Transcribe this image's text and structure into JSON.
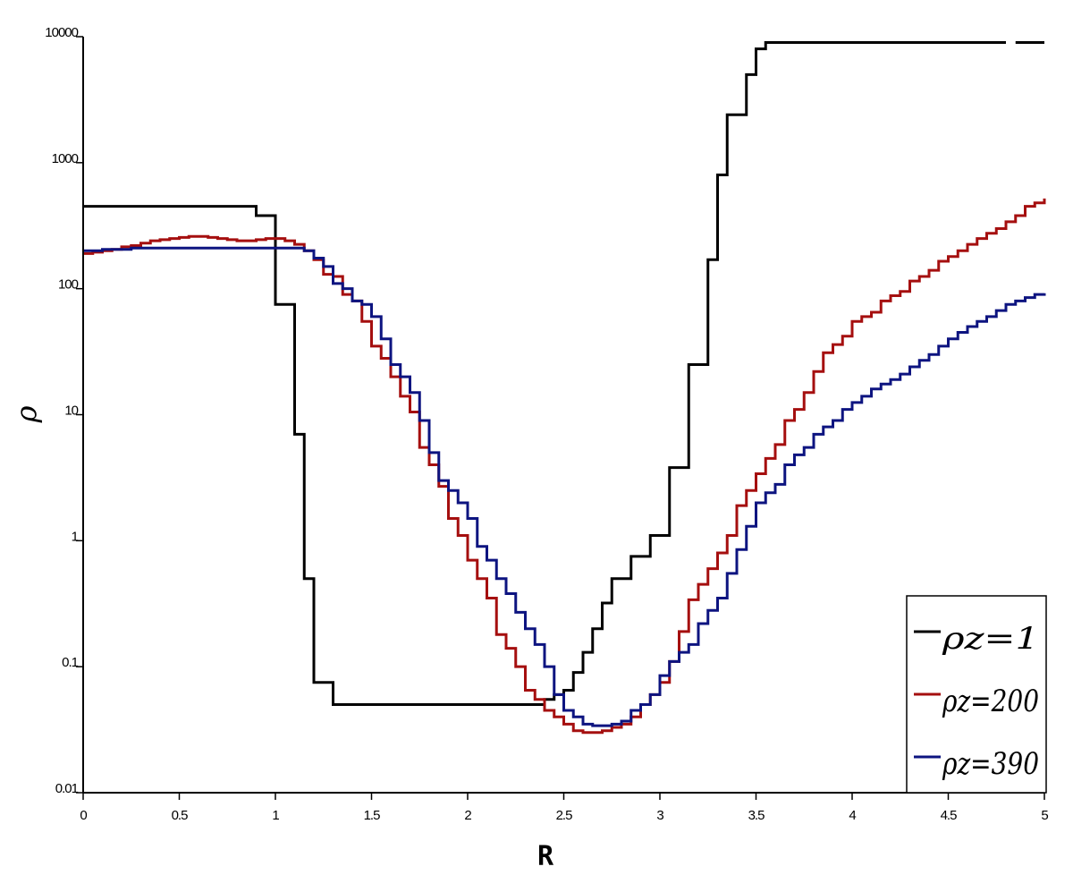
{
  "chart_data": {
    "type": "line",
    "drawstyle": "steps-post",
    "xlabel": "R",
    "ylabel": "ρ",
    "yscale": "log",
    "xlim": [
      0,
      5
    ],
    "ylim": [
      0.01,
      10000
    ],
    "xticks": [
      0,
      0.5,
      1,
      1.5,
      2,
      2.5,
      3,
      3.5,
      4,
      4.5,
      5
    ],
    "yticks": [
      0.01,
      0.1,
      1,
      10,
      100,
      1000,
      10000
    ],
    "grid": false,
    "legend": "lower right",
    "x": [
      0,
      0.05,
      0.1,
      0.15,
      0.2,
      0.25,
      0.3,
      0.35,
      0.4,
      0.45,
      0.5,
      0.55,
      0.6,
      0.65,
      0.7,
      0.75,
      0.8,
      0.85,
      0.9,
      0.95,
      1,
      1.05,
      1.1,
      1.15,
      1.2,
      1.25,
      1.3,
      1.35,
      1.4,
      1.45,
      1.5,
      1.55,
      1.6,
      1.65,
      1.7,
      1.75,
      1.8,
      1.85,
      1.9,
      1.95,
      2,
      2.05,
      2.1,
      2.15,
      2.2,
      2.25,
      2.3,
      2.35,
      2.4,
      2.45,
      2.5,
      2.55,
      2.6,
      2.65,
      2.7,
      2.75,
      2.8,
      2.85,
      2.9,
      2.95,
      3,
      3.05,
      3.1,
      3.15,
      3.2,
      3.25,
      3.3,
      3.35,
      3.4,
      3.45,
      3.5,
      3.55,
      3.6,
      3.65,
      3.7,
      3.75,
      3.8,
      3.85,
      3.9,
      3.95,
      4,
      4.05,
      4.1,
      4.15,
      4.2,
      4.25,
      4.3,
      4.35,
      4.4,
      4.45,
      4.5,
      4.55,
      4.6,
      4.65,
      4.7,
      4.75,
      4.8,
      4.85,
      4.9,
      4.95,
      5
    ],
    "series": [
      {
        "name": "ρz=1",
        "color": "#000000",
        "values": [
          450,
          450,
          450,
          450,
          450,
          450,
          450,
          450,
          450,
          450,
          450,
          450,
          450,
          450,
          450,
          450,
          450,
          450,
          380,
          380,
          75,
          75,
          7,
          0.5,
          0.075,
          0.075,
          0.05,
          0.05,
          0.05,
          0.05,
          0.05,
          0.05,
          0.05,
          0.05,
          0.05,
          0.05,
          0.05,
          0.05,
          0.05,
          0.05,
          0.05,
          0.05,
          0.05,
          0.05,
          0.05,
          0.05,
          0.05,
          0.05,
          0.055,
          0.06,
          0.065,
          0.09,
          0.13,
          0.2,
          0.32,
          0.5,
          0.5,
          0.75,
          0.75,
          1.1,
          1.1,
          3.8,
          3.8,
          25,
          25,
          170,
          800,
          2400,
          2400,
          5000,
          8000,
          9000,
          9000,
          9000,
          9000,
          9000,
          9000,
          9000,
          9000,
          9000,
          9000,
          9000,
          9000,
          9000,
          9000,
          9000,
          9000,
          9000,
          9000,
          9000,
          9000,
          9000,
          9000,
          9000,
          9000,
          9000,
          null,
          9000,
          9000,
          9000,
          9000
        ]
      },
      {
        "name": "ρz=200",
        "color": "#a50f0f",
        "values": [
          190,
          195,
          200,
          205,
          215,
          220,
          230,
          240,
          245,
          250,
          255,
          260,
          260,
          255,
          250,
          245,
          240,
          240,
          245,
          250,
          250,
          240,
          225,
          200,
          170,
          130,
          125,
          90,
          80,
          55,
          35,
          28,
          20,
          14,
          10.5,
          5.5,
          4,
          2.7,
          1.5,
          1.1,
          0.7,
          0.5,
          0.35,
          0.18,
          0.14,
          0.1,
          0.065,
          0.055,
          0.045,
          0.04,
          0.035,
          0.031,
          0.03,
          0.03,
          0.031,
          0.033,
          0.035,
          0.04,
          0.05,
          0.06,
          0.075,
          0.11,
          0.19,
          0.34,
          0.45,
          0.6,
          0.8,
          1.1,
          1.9,
          2.5,
          3.4,
          4.5,
          5.8,
          9,
          11,
          15,
          22,
          31,
          36,
          42,
          55,
          60,
          65,
          80,
          88,
          95,
          115,
          125,
          140,
          165,
          180,
          200,
          225,
          250,
          275,
          300,
          340,
          380,
          450,
          480,
          520
        ]
      },
      {
        "name": "ρz=390",
        "color": "#0d1480",
        "values": [
          200,
          200,
          205,
          205,
          205,
          210,
          210,
          210,
          210,
          210,
          210,
          210,
          210,
          210,
          210,
          210,
          210,
          210,
          210,
          210,
          210,
          210,
          210,
          200,
          175,
          150,
          110,
          100,
          80,
          75,
          60,
          40,
          25,
          20,
          15,
          9,
          5,
          3,
          2.5,
          2,
          1.5,
          0.9,
          0.7,
          0.5,
          0.38,
          0.27,
          0.2,
          0.15,
          0.1,
          0.06,
          0.045,
          0.04,
          0.035,
          0.034,
          0.034,
          0.035,
          0.037,
          0.045,
          0.05,
          0.06,
          0.085,
          0.11,
          0.13,
          0.15,
          0.22,
          0.28,
          0.35,
          0.55,
          0.85,
          1.3,
          2,
          2.4,
          2.8,
          4,
          4.8,
          5.5,
          7,
          8,
          9,
          11,
          12.5,
          14,
          16,
          17.5,
          19,
          21,
          24,
          27,
          30,
          35,
          40,
          45,
          50,
          55,
          60,
          67,
          75,
          80,
          85,
          90,
          92
        ]
      }
    ]
  }
}
